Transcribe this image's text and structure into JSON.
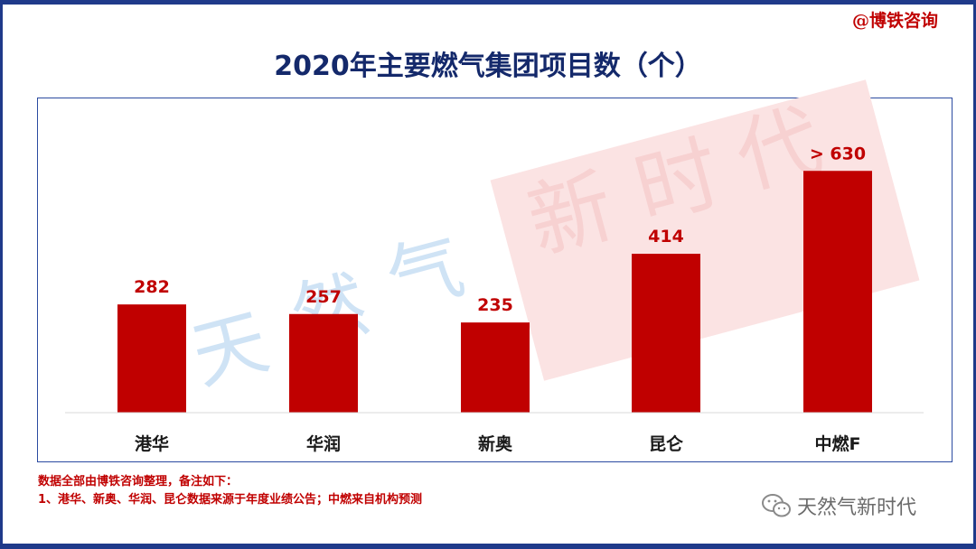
{
  "brand_label": "@博铁咨询",
  "watermark_text": "天然气新时代",
  "footer": {
    "note_line1": "数据全部由博铁咨询整理，备注如下：",
    "note_line2": "1、港华、新奥、华润、昆仑数据来源于年度业绩公告；中燃来自机构预测",
    "wechat_account": "天然气新时代",
    "wechat_icon": "wechat-icon"
  },
  "colors": {
    "bar": "#c00000",
    "title": "#14296b",
    "frame": "#1f3a8a",
    "watermark_blue": "#cfe3f5",
    "watermark_red_band": "#fbe3e3"
  },
  "chart_data": {
    "type": "bar",
    "title": "2020年主要燃气集团项目数（个）",
    "categories": [
      "港华",
      "华润",
      "新奥",
      "昆仑",
      "中燃F"
    ],
    "values": [
      282,
      257,
      235,
      414,
      630
    ],
    "value_labels": [
      "282",
      "257",
      "235",
      "414",
      "> 630"
    ],
    "xlabel": "",
    "ylabel": "",
    "ylim": [
      0,
      700
    ],
    "grid": false,
    "legend": "none"
  }
}
